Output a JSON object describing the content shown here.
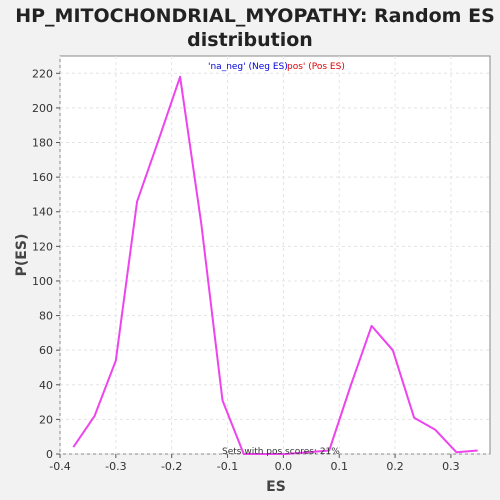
{
  "chart_data": {
    "type": "line",
    "title_line1": "HP_MITOCHONDRIAL_MYOPATHY: Random ES",
    "title_line2": "distribution",
    "xlabel": "ES",
    "ylabel": "P(ES)",
    "xlim": [
      -0.4,
      0.37
    ],
    "ylim": [
      0,
      230
    ],
    "x_ticks": [
      -0.4,
      -0.3,
      -0.2,
      -0.1,
      0.0,
      0.1,
      0.2,
      0.3
    ],
    "x_tick_labels": [
      "-0.4",
      "-0.3",
      "-0.2",
      "-0.1",
      "0.0",
      "0.1",
      "0.2",
      "0.3"
    ],
    "y_ticks": [
      0,
      20,
      40,
      60,
      80,
      100,
      120,
      140,
      160,
      180,
      200,
      220
    ],
    "y_tick_labels": [
      "0",
      "20",
      "40",
      "60",
      "80",
      "100",
      "120",
      "140",
      "160",
      "180",
      "200",
      "220"
    ],
    "legend": {
      "neg_label": "'na_neg' (Neg ES)",
      "pos_label": "pos' (Pos ES)",
      "neg_color": "#0000dd",
      "pos_color": "#dd0000"
    },
    "annotation": "Sets with pos scores: 21%",
    "series": [
      {
        "name": "Random ES",
        "color": "#ee44ee",
        "x": [
          -0.376,
          -0.338,
          -0.3,
          -0.262,
          -0.224,
          -0.185,
          -0.147,
          -0.109,
          -0.071,
          0.005,
          0.082,
          0.12,
          0.158,
          0.196,
          0.234,
          0.272,
          0.31,
          0.348
        ],
        "y": [
          4,
          22,
          54,
          146,
          181,
          218,
          133,
          31,
          0,
          0,
          2,
          39,
          74,
          60,
          21,
          14,
          1,
          2
        ]
      }
    ]
  }
}
